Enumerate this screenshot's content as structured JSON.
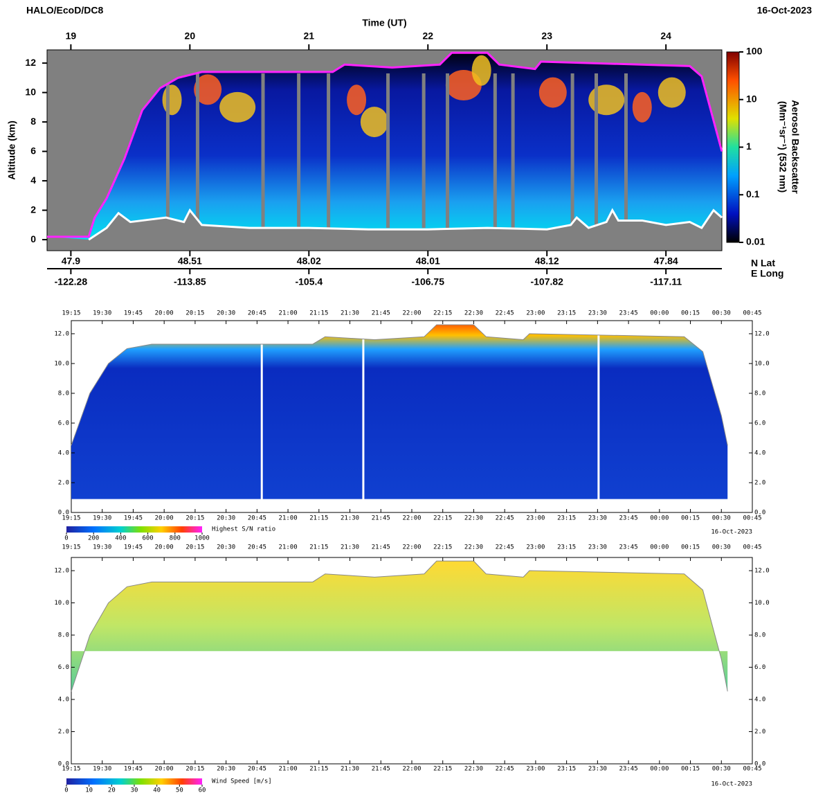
{
  "chart_data": [
    {
      "type": "line",
      "title": "HALO/EcoD/DC8",
      "date": "16-Oct-2023",
      "xlabel": "Time (UT)",
      "ylabel": "Altitude (km)",
      "xlim": [
        18.8,
        24.47
      ],
      "ylim": [
        -0.75,
        12.9
      ],
      "xticks": [
        19,
        20,
        21,
        22,
        23,
        24
      ],
      "yticks": [
        0,
        2,
        4,
        6,
        8,
        10,
        12
      ],
      "lat_label": "N Lat",
      "long_label": "E Long",
      "lat_labels": [
        47.9,
        48.51,
        48.02,
        48.01,
        48.12,
        47.84
      ],
      "long_labels": [
        -122.28,
        -113.85,
        -105.4,
        -106.75,
        -107.82,
        -117.11
      ],
      "series": [
        {
          "color": "#ff22ff",
          "x": [
            18.8,
            19.15,
            19.2,
            19.3,
            19.45,
            19.6,
            19.75,
            19.9,
            20.1,
            21.2,
            21.3,
            21.7,
            22.1,
            22.2,
            22.5,
            22.6,
            22.9,
            22.95,
            24.2,
            24.3,
            24.42,
            24.47
          ],
          "values": [
            0.2,
            0.2,
            1.5,
            2.8,
            5.5,
            8.8,
            10.3,
            11.0,
            11.4,
            11.4,
            11.9,
            11.7,
            11.9,
            12.7,
            12.7,
            11.9,
            11.6,
            12.1,
            11.8,
            11.1,
            7.5,
            6.0
          ]
        },
        {
          "color": "#ffffff",
          "x": [
            19.15,
            19.3,
            19.4,
            19.5,
            19.6,
            19.8,
            19.95,
            20.0,
            20.1,
            20.5,
            21.0,
            21.5,
            22.0,
            22.5,
            23.0,
            23.2,
            23.25,
            23.35,
            23.5,
            23.55,
            23.6,
            23.8,
            24.0,
            24.2,
            24.3,
            24.4,
            24.47
          ],
          "values": [
            0.0,
            0.8,
            1.8,
            1.2,
            1.3,
            1.5,
            1.2,
            2.0,
            1.0,
            0.8,
            0.8,
            0.7,
            0.7,
            0.8,
            0.7,
            1.0,
            1.5,
            0.8,
            1.2,
            2.0,
            1.3,
            1.3,
            1.0,
            1.2,
            0.8,
            2.0,
            1.5
          ]
        }
      ],
      "colorbar": {
        "label": "Aerosol Backscatter",
        "units": "(Mm⁻¹sr⁻¹) (532 nm)",
        "log": true,
        "lim": [
          0.01,
          100
        ],
        "ticks": [
          100,
          10,
          1,
          0.1,
          0.01
        ]
      }
    },
    {
      "type": "curtain",
      "date": "16-Oct-2023",
      "xlim": [
        19.25,
        24.75
      ],
      "ylim": [
        0,
        12.88
      ],
      "xticks": [
        {
          "value": 19.25,
          "label": "19:15"
        },
        {
          "value": 19.5,
          "label": "19:30"
        },
        {
          "value": 19.75,
          "label": "19:45"
        },
        {
          "value": 20,
          "label": "20:00"
        },
        {
          "value": 20.25,
          "label": "20:15"
        },
        {
          "value": 20.5,
          "label": "20:30"
        },
        {
          "value": 20.75,
          "label": "20:45"
        },
        {
          "value": 21,
          "label": "21:00"
        },
        {
          "value": 21.25,
          "label": "21:15"
        },
        {
          "value": 21.5,
          "label": "21:30"
        },
        {
          "value": 21.75,
          "label": "21:45"
        },
        {
          "value": 22,
          "label": "22:00"
        },
        {
          "value": 22.25,
          "label": "22:15"
        },
        {
          "value": 22.5,
          "label": "22:30"
        },
        {
          "value": 22.75,
          "label": "22:45"
        },
        {
          "value": 23,
          "label": "23:00"
        },
        {
          "value": 23.25,
          "label": "23:15"
        },
        {
          "value": 23.5,
          "label": "23:30"
        },
        {
          "value": 23.75,
          "label": "23:45"
        },
        {
          "value": 24,
          "label": "00:00"
        },
        {
          "value": 24.25,
          "label": "00:15"
        },
        {
          "value": 24.5,
          "label": "00:30"
        },
        {
          "value": 24.75,
          "label": "00:45"
        }
      ],
      "yticks": [
        {
          "value": 0,
          "label": "0.0"
        },
        {
          "value": 2,
          "label": "2.0"
        },
        {
          "value": 4,
          "label": "4.0"
        },
        {
          "value": 6,
          "label": "6.0"
        },
        {
          "value": 8,
          "label": "8.0"
        },
        {
          "value": 10,
          "label": "10.0"
        },
        {
          "value": 12,
          "label": "12.0"
        }
      ],
      "series": [
        {
          "color": "#888888",
          "x": [
            19.25,
            19.4,
            19.55,
            19.7,
            19.9,
            21.2,
            21.3,
            21.7,
            22.1,
            22.2,
            22.5,
            22.6,
            22.9,
            22.95,
            24.2,
            24.35,
            24.5,
            24.55
          ],
          "values": [
            4.5,
            8.0,
            10.0,
            11.0,
            11.3,
            11.3,
            11.8,
            11.6,
            11.8,
            12.6,
            12.6,
            11.8,
            11.6,
            12.0,
            11.8,
            10.8,
            6.5,
            4.5
          ]
        }
      ],
      "colorbar": {
        "label": "Highest S/N ratio",
        "lim": [
          0,
          1000
        ],
        "ticks": [
          0,
          200,
          400,
          600,
          800,
          1000
        ]
      }
    },
    {
      "type": "curtain",
      "date": "16-Oct-2023",
      "xlim": [
        19.25,
        24.75
      ],
      "ylim": [
        0,
        12.82
      ],
      "xticks": [
        {
          "value": 19.25,
          "label": "19:15"
        },
        {
          "value": 19.5,
          "label": "19:30"
        },
        {
          "value": 19.75,
          "label": "19:45"
        },
        {
          "value": 20,
          "label": "20:00"
        },
        {
          "value": 20.25,
          "label": "20:15"
        },
        {
          "value": 20.5,
          "label": "20:30"
        },
        {
          "value": 20.75,
          "label": "20:45"
        },
        {
          "value": 21,
          "label": "21:00"
        },
        {
          "value": 21.25,
          "label": "21:15"
        },
        {
          "value": 21.5,
          "label": "21:30"
        },
        {
          "value": 21.75,
          "label": "21:45"
        },
        {
          "value": 22,
          "label": "22:00"
        },
        {
          "value": 22.25,
          "label": "22:15"
        },
        {
          "value": 22.5,
          "label": "22:30"
        },
        {
          "value": 22.75,
          "label": "22:45"
        },
        {
          "value": 23,
          "label": "23:00"
        },
        {
          "value": 23.25,
          "label": "23:15"
        },
        {
          "value": 23.5,
          "label": "23:30"
        },
        {
          "value": 23.75,
          "label": "23:45"
        },
        {
          "value": 24,
          "label": "00:00"
        },
        {
          "value": 24.25,
          "label": "00:15"
        },
        {
          "value": 24.5,
          "label": "00:30"
        },
        {
          "value": 24.75,
          "label": "00:45"
        }
      ],
      "yticks": [
        {
          "value": 0,
          "label": "0.0"
        },
        {
          "value": 2,
          "label": "2.0"
        },
        {
          "value": 4,
          "label": "4.0"
        },
        {
          "value": 6,
          "label": "6.0"
        },
        {
          "value": 8,
          "label": "8.0"
        },
        {
          "value": 10,
          "label": "10.0"
        },
        {
          "value": 12,
          "label": "12.0"
        }
      ],
      "series": [
        {
          "color": "#888888",
          "x": [
            19.25,
            19.4,
            19.55,
            19.7,
            19.9,
            21.2,
            21.3,
            21.7,
            22.1,
            22.2,
            22.5,
            22.6,
            22.9,
            22.95,
            24.2,
            24.35,
            24.5,
            24.55
          ],
          "values": [
            4.5,
            8.0,
            10.0,
            11.0,
            11.3,
            11.3,
            11.8,
            11.6,
            11.8,
            12.6,
            12.6,
            11.8,
            11.6,
            12.0,
            11.8,
            10.8,
            6.5,
            4.5
          ]
        }
      ],
      "colorbar": {
        "label": "Wind Speed [m/s]",
        "lim": [
          0,
          60
        ],
        "ticks": [
          0,
          10,
          20,
          30,
          40,
          50,
          60
        ]
      }
    }
  ]
}
